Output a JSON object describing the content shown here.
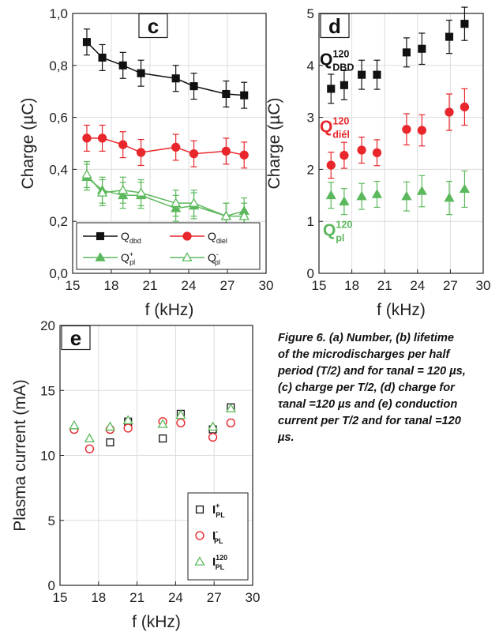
{
  "caption": {
    "lines": [
      "Figure 6. (a) Number, (b) lifetime",
      "of the microdischarges per half",
      "period (T/2) and for τanal = 120 µs,",
      "(c) charge per T/2, (d) charge for",
      "τanal =120 µs and (e) conduction",
      "current per T/2 and for τanal =120",
      "µs."
    ]
  },
  "chart_data": [
    {
      "panel": "c",
      "type": "line",
      "xlabel": "f (kHz)",
      "ylabel": "Charge (µC)",
      "xlim": [
        15,
        30
      ],
      "ylim": [
        0.0,
        1.0
      ],
      "xticks": [
        "15",
        "18",
        "21",
        "24",
        "27",
        "30"
      ],
      "yticks": [
        "0,0",
        "0,2",
        "0,4",
        "0,6",
        "0,8",
        "1,0"
      ],
      "grid": true,
      "legend": "bottom",
      "x": [
        16.1,
        17.3,
        18.9,
        20.3,
        23.0,
        24.4,
        26.9,
        28.3
      ],
      "series": [
        {
          "name": "Q_dbd",
          "marker": "square-filled",
          "color": "#111111",
          "values": [
            0.89,
            0.83,
            0.8,
            0.77,
            0.75,
            0.72,
            0.69,
            0.685
          ],
          "err": [
            0.05,
            0.05,
            0.05,
            0.05,
            0.05,
            0.05,
            0.05,
            0.05
          ]
        },
        {
          "name": "Q_diel",
          "marker": "circle-filled",
          "color": "#e8262b",
          "values": [
            0.52,
            0.52,
            0.495,
            0.465,
            0.485,
            0.46,
            0.47,
            0.455
          ],
          "err": [
            0.05,
            0.05,
            0.05,
            0.05,
            0.05,
            0.05,
            0.05,
            0.05
          ]
        },
        {
          "name": "Q+_pl",
          "marker": "triangle-filled",
          "color": "#5cb85c",
          "values": [
            0.37,
            0.32,
            0.3,
            0.3,
            0.25,
            0.26,
            0.22,
            0.24
          ],
          "err": [
            0.05,
            0.05,
            0.05,
            0.05,
            0.05,
            0.05,
            0.05,
            0.05
          ]
        },
        {
          "name": "Q-_pl",
          "marker": "triangle-open",
          "color": "#5cb85c",
          "values": [
            0.38,
            0.31,
            0.32,
            0.31,
            0.27,
            0.27,
            0.22,
            0.22
          ],
          "err": [
            0.05,
            0.05,
            0.05,
            0.05,
            0.05,
            0.05,
            0.05,
            0.05
          ]
        }
      ]
    },
    {
      "panel": "d",
      "type": "scatter",
      "xlabel": "f (kHz)",
      "ylabel": "Charge (µC)",
      "xlim": [
        15,
        30
      ],
      "ylim": [
        0,
        5
      ],
      "xticks": [
        "15",
        "18",
        "21",
        "24",
        "27",
        "30"
      ],
      "yticks": [
        "0",
        "1",
        "2",
        "3",
        "4",
        "5"
      ],
      "grid": true,
      "x": [
        16.1,
        17.3,
        18.9,
        20.3,
        23.0,
        24.4,
        26.9,
        28.3
      ],
      "series": [
        {
          "name": "Q120 DBD",
          "label_main": "Q",
          "label_sup": "120",
          "label_sub": "DBD",
          "marker": "square-filled",
          "color": "#111111",
          "values": [
            3.55,
            3.62,
            3.82,
            3.82,
            4.25,
            4.32,
            4.55,
            4.8
          ],
          "err": [
            0.28,
            0.28,
            0.28,
            0.28,
            0.28,
            0.3,
            0.32,
            0.32
          ]
        },
        {
          "name": "Q120 diél",
          "label_main": "Q",
          "label_sup": "120",
          "label_sub": "diél",
          "marker": "circle-filled",
          "color": "#e8262b",
          "values": [
            2.08,
            2.27,
            2.37,
            2.32,
            2.77,
            2.75,
            3.1,
            3.2
          ],
          "err": [
            0.25,
            0.25,
            0.25,
            0.25,
            0.3,
            0.3,
            0.35,
            0.35
          ]
        },
        {
          "name": "Q120 pl",
          "label_main": "Q",
          "label_sup": "120",
          "label_sub": "pl",
          "marker": "triangle-filled",
          "color": "#5cb85c",
          "values": [
            1.5,
            1.38,
            1.48,
            1.52,
            1.48,
            1.58,
            1.45,
            1.62
          ],
          "err": [
            0.25,
            0.25,
            0.25,
            0.25,
            0.28,
            0.3,
            0.32,
            0.35
          ]
        }
      ]
    },
    {
      "panel": "e",
      "type": "scatter",
      "xlabel": "f (kHz)",
      "ylabel": "Plasma current (mA)",
      "xlim": [
        15,
        30
      ],
      "ylim": [
        0,
        20
      ],
      "xticks": [
        "15",
        "18",
        "21",
        "24",
        "27",
        "30"
      ],
      "yticks": [
        "0",
        "5",
        "10",
        "15",
        "20"
      ],
      "grid": true,
      "legend": "bottom-right",
      "x": [
        16.1,
        17.3,
        18.9,
        20.3,
        23.0,
        24.4,
        26.9,
        28.3
      ],
      "series": [
        {
          "name": "I+ PL",
          "label_main": "I",
          "label_sup": "+",
          "label_sub": "PL",
          "marker": "square-open",
          "color": "#111111",
          "values": [
            null,
            null,
            11.0,
            12.6,
            11.3,
            13.2,
            12.0,
            13.7
          ]
        },
        {
          "name": "I- PL",
          "label_main": "I",
          "label_sup": "-",
          "label_sub": "PL",
          "marker": "circle-open",
          "color": "#e8262b",
          "values": [
            12.0,
            10.5,
            12.0,
            12.1,
            12.6,
            12.5,
            11.4,
            12.5
          ]
        },
        {
          "name": "I120 PL",
          "label_main": "I",
          "label_sup": "120",
          "label_sub": "PL",
          "marker": "triangle-open",
          "color": "#5cb85c",
          "values": [
            12.3,
            11.3,
            12.2,
            12.7,
            12.4,
            13.1,
            12.2,
            13.6
          ]
        }
      ]
    }
  ]
}
